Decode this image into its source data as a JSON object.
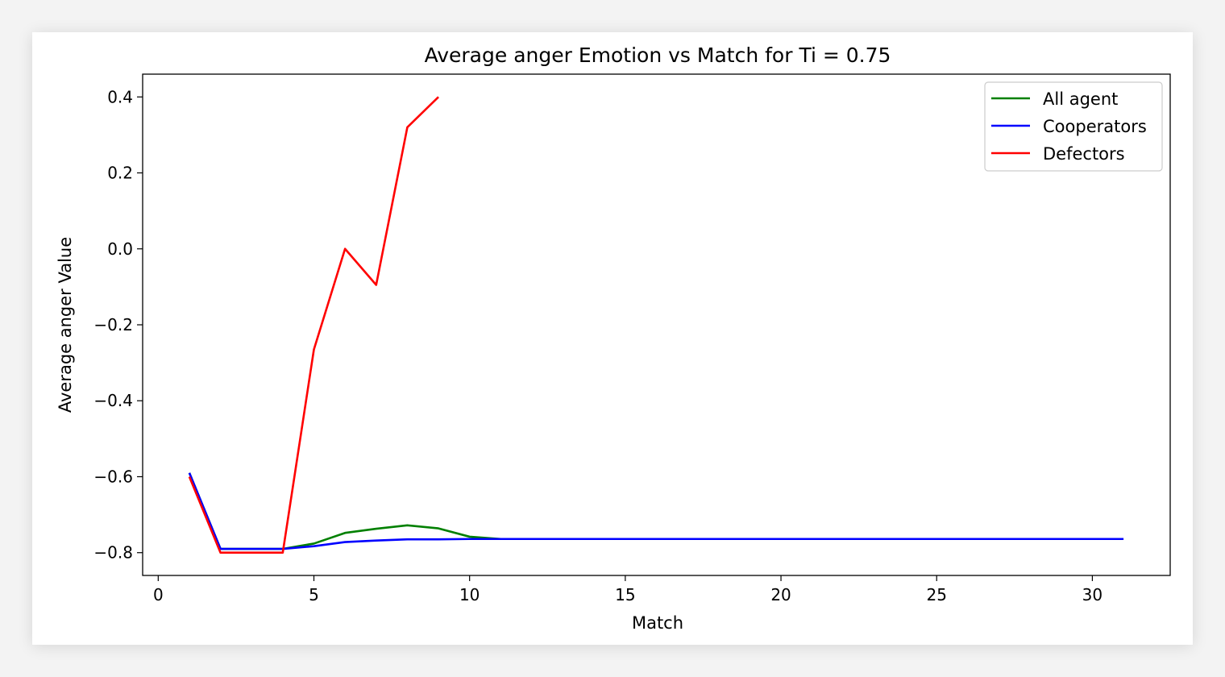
{
  "chart_data": {
    "type": "line",
    "title": "Average anger Emotion vs Match for Ti = 0.75",
    "xlabel": "Match",
    "ylabel": "Average anger Value",
    "xlim": [
      -0.5,
      32.5
    ],
    "ylim": [
      -0.86,
      0.46
    ],
    "xticks": [
      0,
      5,
      10,
      15,
      20,
      25,
      30
    ],
    "xtick_labels": [
      "0",
      "5",
      "10",
      "15",
      "20",
      "25",
      "30"
    ],
    "yticks": [
      0.4,
      0.2,
      0.0,
      -0.2,
      -0.4,
      -0.6,
      -0.8
    ],
    "ytick_labels": [
      "0.4",
      "0.2",
      "0.0",
      "−0.2",
      "−0.4",
      "−0.6",
      "−0.8"
    ],
    "grid": false,
    "legend_position": "top-right",
    "series": [
      {
        "name": "All agent",
        "color": "#008000",
        "x": [
          1,
          2,
          3,
          4,
          5,
          6,
          7,
          8,
          9,
          10,
          11,
          12,
          13,
          14,
          15,
          16,
          17,
          18,
          19,
          20,
          21,
          22,
          23,
          24,
          25,
          26,
          27,
          28,
          29,
          30,
          31
        ],
        "y": [
          -0.59,
          -0.79,
          -0.79,
          -0.79,
          -0.776,
          -0.748,
          -0.737,
          -0.728,
          -0.736,
          -0.758,
          -0.764,
          -0.764,
          -0.764,
          -0.764,
          -0.764,
          -0.764,
          -0.764,
          -0.764,
          -0.764,
          -0.764,
          -0.764,
          -0.764,
          -0.764,
          -0.764,
          -0.764,
          -0.764,
          -0.764,
          -0.764,
          -0.764,
          -0.764,
          -0.764
        ]
      },
      {
        "name": "Cooperators",
        "color": "#0000ff",
        "x": [
          1,
          2,
          3,
          4,
          5,
          6,
          7,
          8,
          9,
          10,
          11,
          12,
          13,
          14,
          15,
          16,
          17,
          18,
          19,
          20,
          21,
          22,
          23,
          24,
          25,
          26,
          27,
          28,
          29,
          30,
          31
        ],
        "y": [
          -0.59,
          -0.79,
          -0.79,
          -0.79,
          -0.783,
          -0.772,
          -0.768,
          -0.765,
          -0.765,
          -0.764,
          -0.764,
          -0.764,
          -0.764,
          -0.764,
          -0.764,
          -0.764,
          -0.764,
          -0.764,
          -0.764,
          -0.764,
          -0.764,
          -0.764,
          -0.764,
          -0.764,
          -0.764,
          -0.764,
          -0.764,
          -0.764,
          -0.764,
          -0.764,
          -0.764
        ]
      },
      {
        "name": "Defectors",
        "color": "#ff0000",
        "x": [
          1,
          2,
          3,
          4,
          5,
          6,
          7,
          8,
          9
        ],
        "y": [
          -0.6,
          -0.8,
          -0.8,
          -0.8,
          -0.265,
          0.0,
          -0.095,
          0.32,
          0.4
        ]
      }
    ]
  }
}
